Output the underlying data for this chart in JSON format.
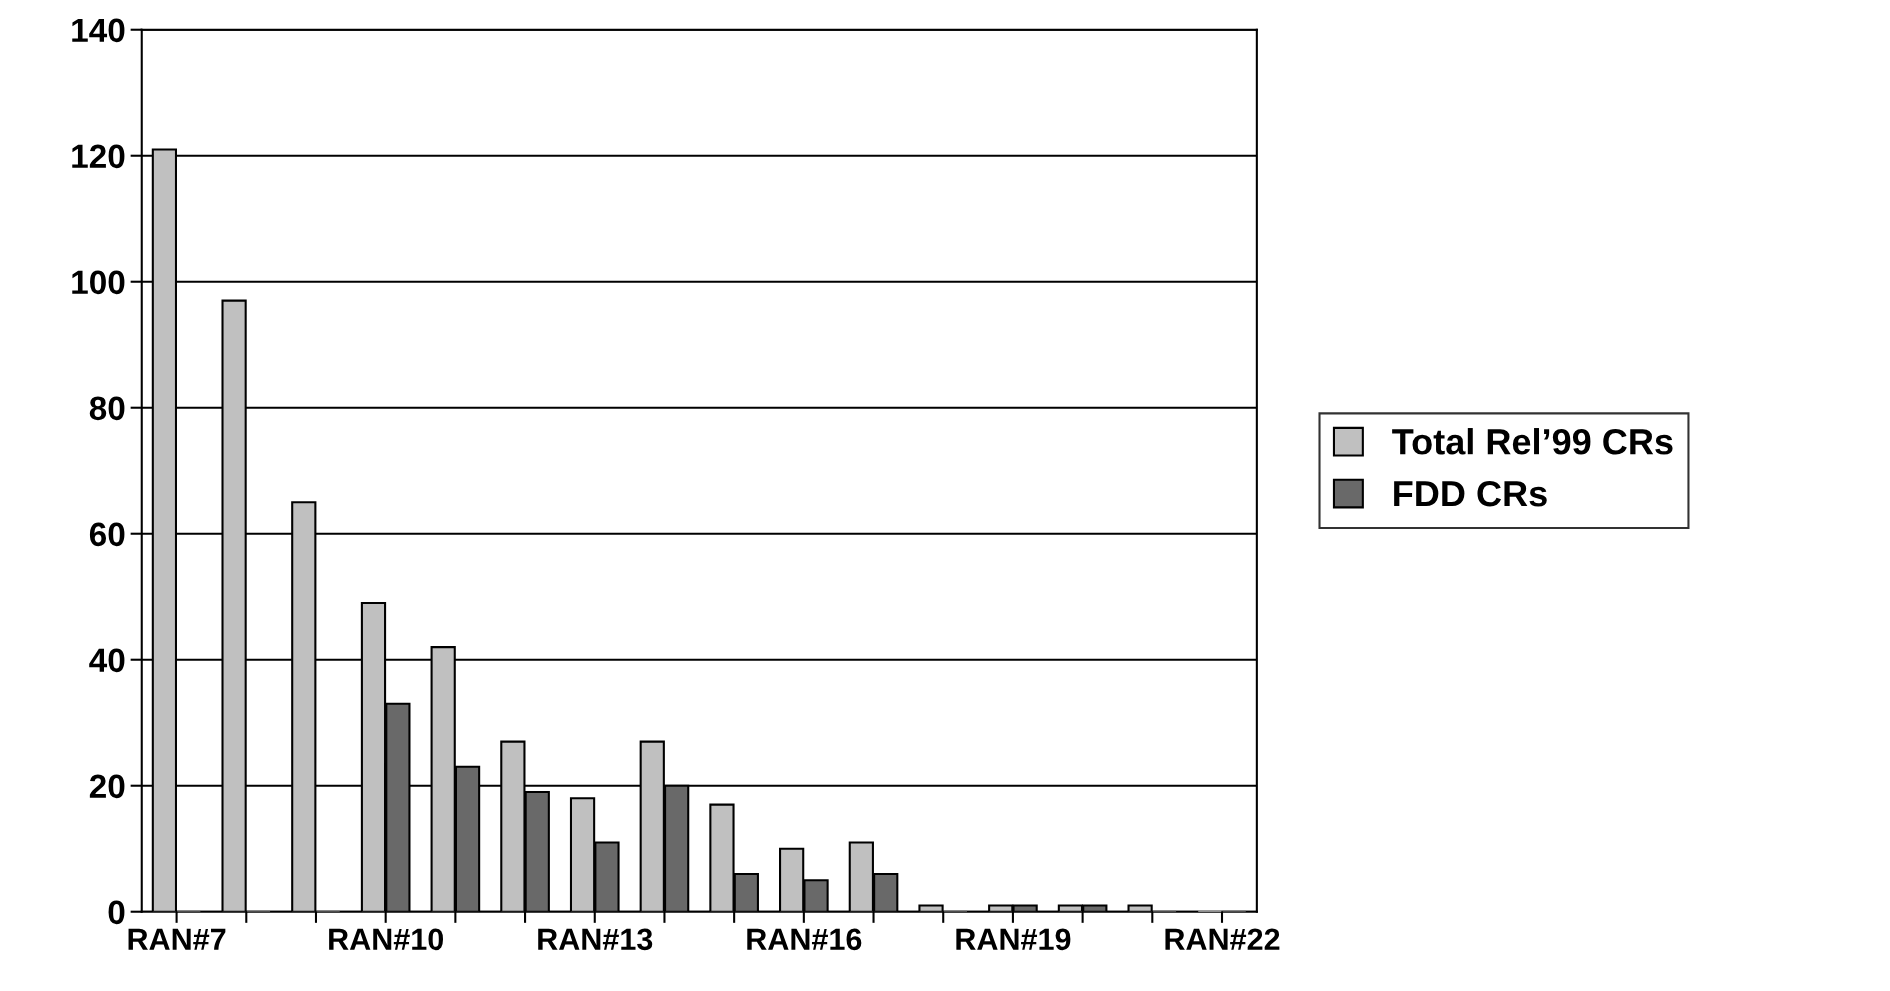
{
  "chart_data": {
    "type": "bar",
    "categories": [
      "RAN#7",
      null,
      null,
      "RAN#10",
      null,
      null,
      "RAN#13",
      null,
      null,
      "RAN#16",
      null,
      null,
      "RAN#19",
      null,
      null,
      "RAN#22"
    ],
    "series": [
      {
        "name": "Total Rel’99 CRs",
        "color": "#c0c0c0",
        "values": [
          121,
          97,
          65,
          49,
          42,
          27,
          18,
          27,
          17,
          10,
          11,
          1,
          1,
          1,
          1,
          0
        ]
      },
      {
        "name": "FDD CRs",
        "color": "#696969",
        "values": [
          0,
          0,
          0,
          33,
          23,
          19,
          11,
          20,
          6,
          5,
          6,
          0,
          1,
          1,
          0,
          0
        ]
      }
    ],
    "ylim": [
      0,
      140
    ],
    "yticks": [
      0,
      20,
      40,
      60,
      80,
      100,
      120,
      140
    ],
    "grid": "y",
    "legend": "right"
  }
}
